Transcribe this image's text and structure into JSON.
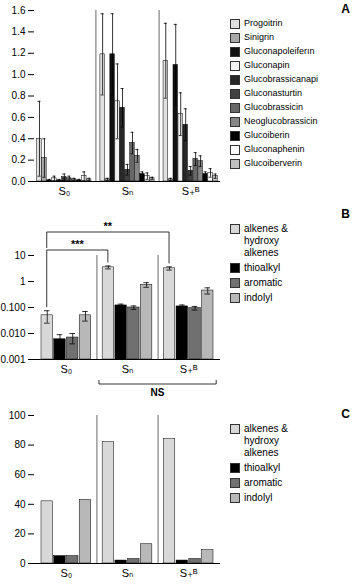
{
  "chart_data": [
    {
      "type": "bar",
      "title": "A",
      "categories": [
        "S₀",
        "Sₙ",
        "S₊ᴮ"
      ],
      "series": [
        {
          "name": "Progoitrin",
          "color": "#e0e0e0",
          "values": [
            0.4,
            1.19,
            1.13
          ],
          "errors": [
            0.35,
            0.38,
            0.35
          ]
        },
        {
          "name": "Sinigrin",
          "color": "#a8a8a8",
          "values": [
            0.22,
            0.02,
            0.02
          ],
          "errors": [
            0.18,
            0.01,
            0.01
          ]
        },
        {
          "name": "Gluconapoleiferın",
          "color": "#111111",
          "values": [
            0.01,
            1.19,
            1.09
          ],
          "errors": [
            0.01,
            0.38,
            0.38
          ]
        },
        {
          "name": "Gluconapin",
          "color": "#f2f2f2",
          "values": [
            0.03,
            0.75,
            0.63
          ],
          "errors": [
            0.02,
            0.35,
            0.2
          ]
        },
        {
          "name": "Glucobrassicanapi",
          "color": "#282828",
          "values": [
            0.01,
            0.69,
            0.53
          ],
          "errors": [
            0.01,
            0.18,
            0.15
          ]
        },
        {
          "name": "Gluconasturtin",
          "color": "#404040",
          "values": [
            0.04,
            0.11,
            0.1
          ],
          "errors": [
            0.03,
            0.05,
            0.04
          ]
        },
        {
          "name": "Glucobrassicin",
          "color": "#686868",
          "values": [
            0.03,
            0.36,
            0.21
          ],
          "errors": [
            0.02,
            0.1,
            0.06
          ]
        },
        {
          "name": "Neoglucobrassicin",
          "color": "#868686",
          "values": [
            0.02,
            0.24,
            0.19
          ],
          "errors": [
            0.01,
            0.06,
            0.05
          ]
        },
        {
          "name": "Glucoiberin",
          "color": "#000000",
          "values": [
            0.01,
            0.07,
            0.07
          ],
          "errors": [
            0.01,
            0.02,
            0.02
          ]
        },
        {
          "name": "Gluconaphenin",
          "color": "#ffffff",
          "values": [
            0.05,
            0.05,
            0.08
          ],
          "errors": [
            0.04,
            0.03,
            0.04
          ]
        },
        {
          "name": "Glucoiberverin",
          "color": "#c0c0c0",
          "values": [
            0.02,
            0.03,
            0.05
          ],
          "errors": [
            0.01,
            0.01,
            0.02
          ]
        }
      ],
      "ylim": [
        0.0,
        1.6
      ],
      "yticks": [
        {
          "value": 0.0,
          "label": "0.0"
        },
        0.2,
        0.4,
        0.6,
        0.8,
        {
          "value": 1.0,
          "label": "1.0"
        },
        1.2,
        1.4,
        1.6
      ],
      "grid": false,
      "legend": "right"
    },
    {
      "type": "bar",
      "title": "B",
      "categories": [
        "S₀",
        "Sₙ",
        "S₊ᴮ"
      ],
      "series": [
        {
          "name": "alkenes &\nhydroxy\nalkenes",
          "color": "#d8d8d8",
          "values": [
            0.05,
            3.5,
            3.2
          ],
          "errors": [
            0.025,
            0.45,
            0.45
          ]
        },
        {
          "name": "thioalkyl",
          "color": "#000000",
          "values": [
            0.006,
            0.12,
            0.11
          ],
          "errors": [
            0.003,
            0.015,
            0.015
          ]
        },
        {
          "name": "aromatic",
          "color": "#707070",
          "values": [
            0.007,
            0.1,
            0.095
          ],
          "errors": [
            0.003,
            0.015,
            0.015
          ]
        },
        {
          "name": "indolyl",
          "color": "#b8b8b8",
          "values": [
            0.05,
            0.75,
            0.45
          ],
          "errors": [
            0.02,
            0.15,
            0.12
          ]
        }
      ],
      "log": "y",
      "ylim": [
        0.001,
        10
      ],
      "yticks": [
        0.001,
        {
          "value": 0.01,
          "label": "0.010"
        },
        {
          "value": 0.1,
          "label": "0.100"
        },
        1,
        10
      ],
      "annotations": [
        {
          "text": "***",
          "groups": [
            "S₀",
            "Sₙ"
          ],
          "series": "alkenes &\nhydroxy\nalkenes"
        },
        {
          "text": "**",
          "groups": [
            "S₀",
            "S₊ᴮ"
          ],
          "series": "alkenes &\nhydroxy\nalkenes"
        },
        {
          "text": "NS",
          "groups": [
            "Sₙ",
            "S₊ᴮ"
          ]
        }
      ],
      "grid": false,
      "legend": "right"
    },
    {
      "type": "bar",
      "title": "C",
      "categories": [
        "S₀",
        "Sₙ",
        "S₊ᴮ"
      ],
      "series": [
        {
          "name": "alkenes &\nhydroxy\nalkenes",
          "color": "#d8d8d8",
          "values": [
            42,
            82,
            84
          ]
        },
        {
          "name": "thioalkyl",
          "color": "#000000",
          "values": [
            5,
            2,
            2
          ]
        },
        {
          "name": "aromatic",
          "color": "#707070",
          "values": [
            5,
            3,
            3
          ]
        },
        {
          "name": "indolyl",
          "color": "#b8b8b8",
          "values": [
            43,
            13,
            9
          ]
        }
      ],
      "ylim": [
        0,
        100
      ],
      "yticks": [
        0,
        20,
        40,
        60,
        80,
        100
      ],
      "grid": false,
      "legend": "right"
    }
  ]
}
